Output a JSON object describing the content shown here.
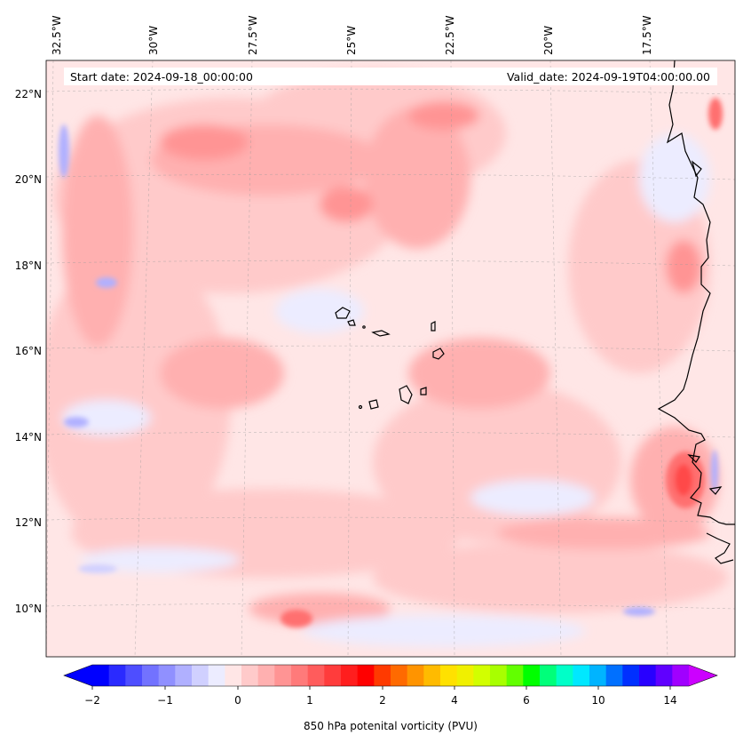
{
  "header": {
    "start_date": "Start date: 2024-09-18_00:00:00",
    "valid_date": "Valid_date: 2024-09-19T04:00:00.00"
  },
  "axes": {
    "lon_labels": [
      "32.5°W",
      "30°W",
      "27.5°W",
      "25°W",
      "22.5°W",
      "20°W",
      "17.5°W"
    ],
    "lat_labels": [
      "22°N",
      "20°N",
      "18°N",
      "16°N",
      "14°N",
      "12°N",
      "10°N"
    ]
  },
  "colorbar": {
    "label": "850 hPa potenital vorticity (PVU)",
    "tick_labels": [
      "−2",
      "−1",
      "0",
      "1",
      "2",
      "4",
      "6",
      "10",
      "14"
    ],
    "colors": [
      "#0000ff",
      "#2a2aff",
      "#4e4eff",
      "#7272ff",
      "#9090ff",
      "#b0b0ff",
      "#d0d0ff",
      "#ececff",
      "#ffe6e6",
      "#ffcaca",
      "#ffb0b0",
      "#ff9494",
      "#ff7a7a",
      "#ff5c5c",
      "#ff3c3c",
      "#ff1e1e",
      "#ff0000",
      "#ff3a00",
      "#ff6a00",
      "#ff9400",
      "#ffbb00",
      "#ffe100",
      "#f0f000",
      "#d2ff00",
      "#a8ff00",
      "#62ff00",
      "#00ff00",
      "#00ff7a",
      "#00ffc8",
      "#00e8ff",
      "#00b4ff",
      "#0070ff",
      "#0030ff",
      "#2800ff",
      "#6000ff",
      "#a000ff"
    ],
    "extend_low_color": "#0000ff",
    "extend_high_color": "#cc00ff"
  },
  "map_colors": {
    "ocean_base": "#ffe6e6",
    "light_red": "#ffcaca",
    "mid_red": "#ffb0b0",
    "strong_red": "#ff9494",
    "deep_red": "#ff7070",
    "light_blue": "#ececff",
    "blue": "#d0d0ff",
    "coast": "#000000"
  }
}
